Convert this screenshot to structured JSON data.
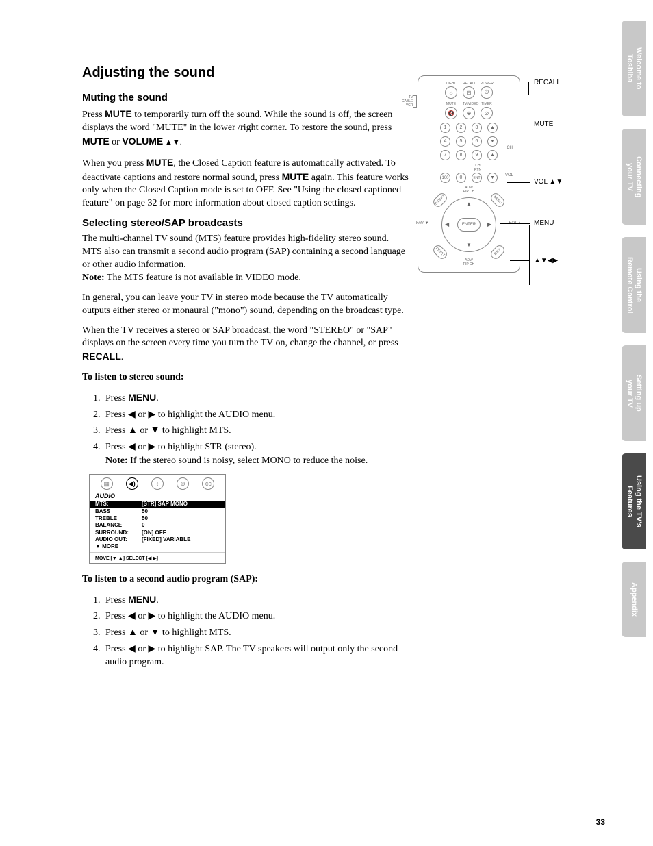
{
  "headings": {
    "main": "Adjusting the sound",
    "sub1": "Muting the sound",
    "sub2": "Selecting stereo/SAP broadcasts"
  },
  "para": {
    "p1a": "Press ",
    "p1b": " to temporarily turn off the sound. While the sound is off, the screen displays the word \"MUTE\" in the lower /right corner. To restore the sound, press ",
    "p1c": " or ",
    "p1d": " ▲▼.",
    "mute": "MUTE",
    "volume": "VOLUME",
    "p2a": "When you press ",
    "p2b": ", the Closed Caption feature is automatically activated. To deactivate captions and restore normal sound, press ",
    "p2c": " again. This feature works only when the Closed Caption mode is set to OFF. See \"Using the closed captioned feature\" on page 32 for more information about closed caption settings.",
    "p3": "The multi-channel TV sound (MTS) feature provides high-fidelity stereo sound. MTS also can transmit a second audio program (SAP) containing a second language or other audio information.",
    "p3note_label": "Note:",
    "p3note": " The MTS feature is not available in VIDEO mode.",
    "p4": "In general, you can leave your TV in stereo mode because the TV automatically outputs either stereo or monaural (\"mono\") sound, depending on the broadcast type.",
    "p5a": "When the TV receives a stereo or SAP broadcast, the word \"STEREO\" or \"SAP\" displays on the screen every time you turn the TV on, change the channel, or press ",
    "p5b": ".",
    "recall": "RECALL",
    "stereo_title": "To listen to stereo sound:",
    "sap_title": "To listen to a second audio program (SAP):",
    "menu": "MENU"
  },
  "list1": {
    "i1a": "Press ",
    "i1b": ".",
    "i2": "Press ◀ or ▶ to highlight the AUDIO menu.",
    "i3": "Press ▲ or ▼ to highlight MTS.",
    "i4": "Press ◀ or ▶ to highlight STR (stereo).",
    "i4note_label": "Note:",
    "i4note": " If the stereo sound is noisy, select MONO to reduce the noise."
  },
  "list2": {
    "i1a": "Press ",
    "i1b": ".",
    "i2": "Press ◀ or ▶ to highlight the AUDIO menu.",
    "i3": "Press ▲ or ▼ to highlight MTS.",
    "i4": "Press ◀ or ▶ to highlight SAP. The TV speakers will output only the second audio program."
  },
  "menubox": {
    "title": "AUDIO",
    "rows": [
      {
        "lbl": "MTS:",
        "val": "[STR] SAP MONO",
        "hl": true
      },
      {
        "lbl": "BASS",
        "val": "50"
      },
      {
        "lbl": "TREBLE",
        "val": "50"
      },
      {
        "lbl": "BALANCE",
        "val": "0"
      },
      {
        "lbl": "SURROUND:",
        "val": "[ON] OFF"
      },
      {
        "lbl": "AUDIO OUT:",
        "val": "[FIXED] VARIABLE"
      },
      {
        "lbl": "▼ MORE",
        "val": ""
      }
    ],
    "foot": "MOVE [▼ ▲]    SELECT [◀  ▶]"
  },
  "callouts": {
    "recall": "RECALL",
    "mute": "MUTE",
    "vol": "VOL ▲▼",
    "menu": "MENU",
    "arrows": "▲▼◀▶"
  },
  "remote": {
    "top_labels": [
      "LIGHT",
      "RECALL",
      "POWER"
    ],
    "row2_labels": [
      "MUTE",
      "TV/VIDEO",
      "TIMER"
    ],
    "enter": "ENTER",
    "adv": "ADV/\nPIP CH",
    "fav_l": "FAV ▼",
    "fav_r": "FAV ▲",
    "tv_switch": "TV\nCABLE\nVCR",
    "chrtn": "CH RTN",
    "ch": "CH",
    "vol": "VOL"
  },
  "tabs": [
    {
      "label": "Welcome to\nToshiba",
      "active": false
    },
    {
      "label": "Connecting\nyour TV",
      "active": false
    },
    {
      "label": "Using the\nRemote Control",
      "active": false
    },
    {
      "label": "Setting up\nyour TV",
      "active": false
    },
    {
      "label": "Using the TV's\nFeatures",
      "active": true
    },
    {
      "label": "Appendix",
      "active": false
    }
  ],
  "page_number": "33"
}
